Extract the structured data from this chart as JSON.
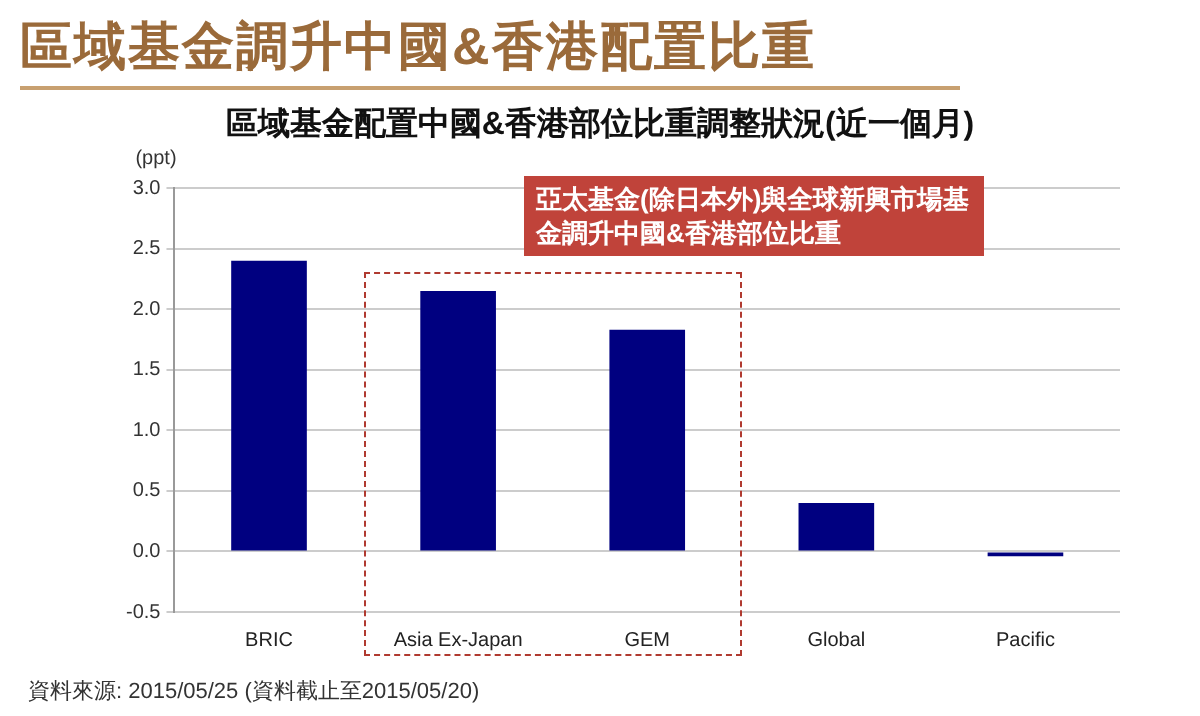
{
  "chart_data": {
    "type": "bar",
    "title": "區域基金調升中國&香港配置比重",
    "subtitle": "區域基金配置中國&香港部位比重調整狀況(近一個月)",
    "ylabel": "(ppt)",
    "categories": [
      "BRIC",
      "Asia Ex-Japan",
      "GEM",
      "Global",
      "Pacific"
    ],
    "values": [
      2.4,
      2.15,
      1.83,
      0.4,
      -0.04
    ],
    "color": "#000080",
    "ylim": [
      -0.5,
      3.0
    ],
    "yticks": [
      {
        "value": -0.5,
        "label": "-0.5"
      },
      {
        "value": 0,
        "label": "0.0"
      },
      {
        "value": 0.5,
        "label": "0.5"
      },
      {
        "value": 1,
        "label": "1.0"
      },
      {
        "value": 1.5,
        "label": "1.5"
      },
      {
        "value": 2,
        "label": "2.0"
      },
      {
        "value": 2.5,
        "label": "2.5"
      },
      {
        "value": 3,
        "label": "3.0"
      }
    ],
    "grid": "y",
    "legend": false,
    "annotations": [
      "亞太基金(除日本外)與全球新興市場基金調升中國&香港部位比重",
      "資料來源: 2015/05/25 (資料截止至2015/05/20)"
    ]
  }
}
